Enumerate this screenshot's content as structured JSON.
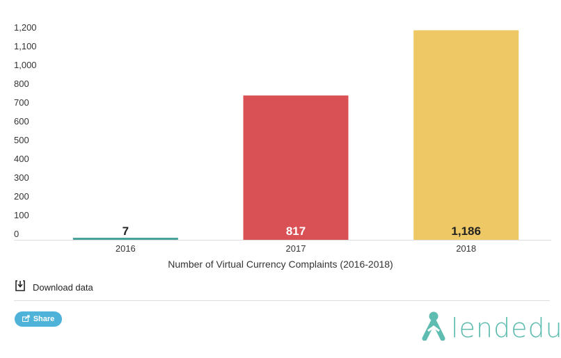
{
  "chart_data": {
    "type": "bar",
    "categories": [
      "2016",
      "2017",
      "2018"
    ],
    "values": [
      7,
      817,
      1186
    ],
    "value_labels": [
      "7",
      "817",
      "1,186"
    ],
    "colors": [
      "#4aa39a",
      "#d95155",
      "#efc866"
    ],
    "label_colors": [
      "#222222",
      "#ffffff",
      "#222222"
    ],
    "title": "",
    "xlabel": "Number of Virtual Currency Complaints (2016-2018)",
    "ylabel": "",
    "ylim": [
      0,
      1200
    ],
    "yticks": [
      0,
      100,
      200,
      300,
      400,
      500,
      600,
      700,
      800,
      1000,
      1100,
      1200
    ],
    "ytick_labels": [
      "0",
      "100",
      "200",
      "300",
      "400",
      "500",
      "600",
      "700",
      "800",
      "1,000",
      "1,100",
      "1,200"
    ],
    "grid": false,
    "legend": "none"
  },
  "footer": {
    "download_label": "Download data",
    "share_label": "Share",
    "logo_text": "lendedu",
    "logo_color": "#5fbcb0",
    "share_color": "#4fb3d9"
  }
}
